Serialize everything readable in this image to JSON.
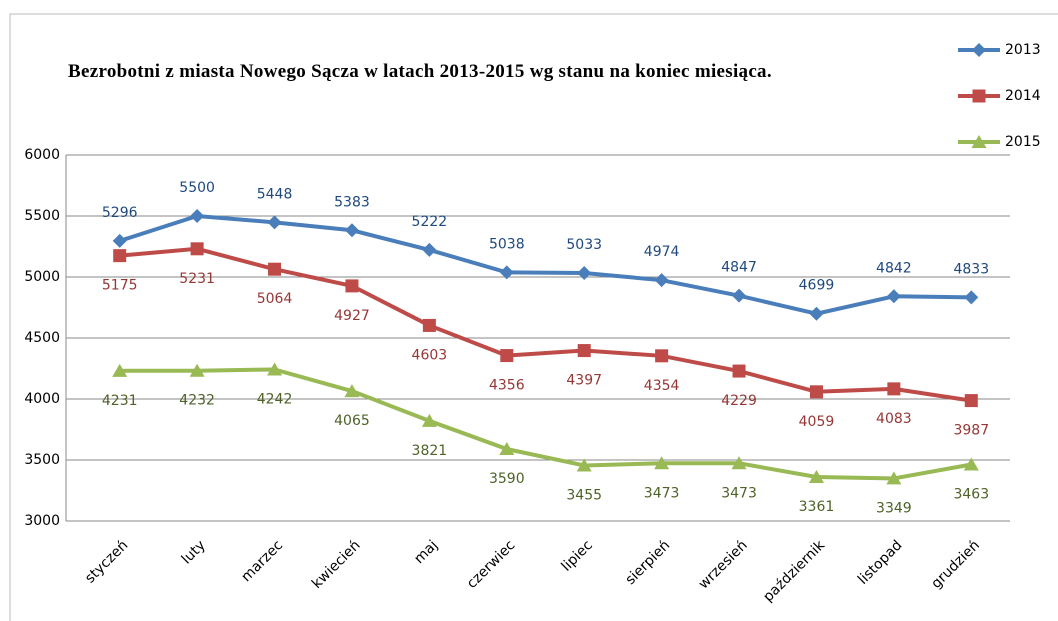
{
  "chart_data": {
    "type": "line",
    "title": "Bezrobotni z miasta Nowego Sącza w latach 2013-2015 wg stanu na koniec miesiąca.",
    "categories": [
      "styczeń",
      "luty",
      "marzec",
      "kwiecień",
      "maj",
      "czerwiec",
      "lipiec",
      "sierpień",
      "wrzesień",
      "październik",
      "listopad",
      "grudzień"
    ],
    "series": [
      {
        "name": "2013",
        "color": "#4a7ebb",
        "marker": "diamond",
        "values": [
          5296,
          5500,
          5448,
          5383,
          5222,
          5038,
          5033,
          4974,
          4847,
          4699,
          4842,
          4833
        ]
      },
      {
        "name": "2014",
        "color": "#be4b48",
        "marker": "square",
        "values": [
          5175,
          5231,
          5064,
          4927,
          4603,
          4356,
          4397,
          4354,
          4229,
          4059,
          4083,
          3987
        ]
      },
      {
        "name": "2015",
        "color": "#98b954",
        "marker": "triangle",
        "values": [
          4231,
          4232,
          4242,
          4065,
          3821,
          3590,
          3455,
          3473,
          3473,
          3361,
          3349,
          3463
        ]
      }
    ],
    "ylim": [
      3000,
      6000
    ],
    "yticks": [
      3000,
      3500,
      4000,
      4500,
      5000,
      5500,
      6000
    ],
    "grid": true,
    "legend": "top-right"
  }
}
